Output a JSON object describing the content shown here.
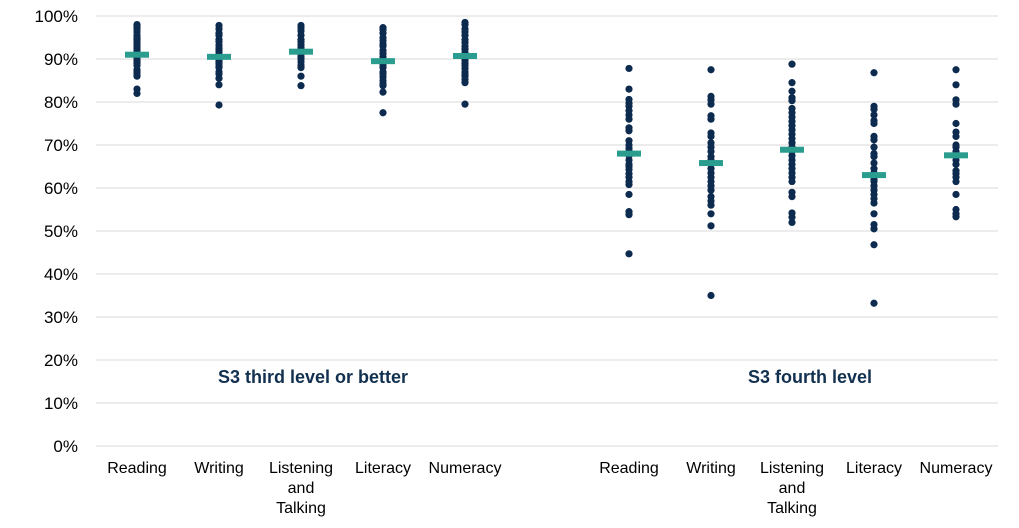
{
  "chart_data": {
    "type": "scatter",
    "subtype": "dot-strip with mean markers",
    "title": "",
    "xlabel": "",
    "ylabel": "",
    "ylim": [
      0,
      100
    ],
    "y_ticks": [
      "0%",
      "10%",
      "20%",
      "30%",
      "40%",
      "50%",
      "60%",
      "70%",
      "80%",
      "90%",
      "100%"
    ],
    "grid": true,
    "legend": "none",
    "colors": {
      "points": "#0d2b4f",
      "mean": "#2a9d8f",
      "grid": "#d9d9d9",
      "group_label": "#12304f"
    },
    "groups": [
      {
        "label": "S3 third level or better",
        "categories": [
          {
            "label": [
              "Reading"
            ],
            "mean": 91.0,
            "values": [
              98.0,
              97.5,
              97.0,
              96.3,
              95.5,
              95.0,
              94.6,
              94.0,
              93.5,
              93.0,
              92.5,
              92.0,
              91.3,
              90.5,
              90.0,
              89.5,
              89.0,
              88.5,
              87.5,
              87.0,
              86.5,
              86.0,
              83.0,
              82.0
            ]
          },
          {
            "label": [
              "Writing"
            ],
            "mean": 90.5,
            "values": [
              97.8,
              97.0,
              96.0,
              95.5,
              94.5,
              94.0,
              93.2,
              92.5,
              92.0,
              91.5,
              90.5,
              90.0,
              89.5,
              89.0,
              88.5,
              88.0,
              87.0,
              86.5,
              85.5,
              84.0,
              79.3
            ]
          },
          {
            "label": [
              "Listening",
              "and",
              "Talking"
            ],
            "mean": 91.7,
            "values": [
              97.8,
              97.2,
              96.5,
              95.5,
              94.5,
              94.0,
              93.3,
              92.6,
              92.0,
              91.2,
              90.5,
              90.0,
              89.3,
              88.5,
              88.0,
              86.0,
              83.8
            ]
          },
          {
            "label": [
              "Literacy"
            ],
            "mean": 89.5,
            "values": [
              97.3,
              96.8,
              96.0,
              95.0,
              94.3,
              93.5,
              93.0,
              92.0,
              91.3,
              90.5,
              89.8,
              89.0,
              88.5,
              88.0,
              87.0,
              86.5,
              85.8,
              85.0,
              84.3,
              83.8,
              82.3,
              77.5
            ]
          },
          {
            "label": [
              "Numeracy"
            ],
            "mean": 90.7,
            "values": [
              98.5,
              98.0,
              97.0,
              96.3,
              95.5,
              94.5,
              93.8,
              93.0,
              92.3,
              91.5,
              91.0,
              90.3,
              89.7,
              89.0,
              88.5,
              87.8,
              87.0,
              86.5,
              86.0,
              85.2,
              84.5,
              79.5
            ]
          }
        ]
      },
      {
        "label": "S3 fourth level",
        "categories": [
          {
            "label": [
              "Reading"
            ],
            "mean": 68.0,
            "values": [
              87.8,
              83.0,
              80.6,
              79.7,
              79.0,
              78.0,
              77.0,
              76.0,
              74.0,
              73.3,
              71.0,
              70.0,
              69.2,
              68.5,
              67.5,
              66.5,
              65.5,
              65.0,
              64.3,
              63.3,
              62.5,
              61.5,
              60.8,
              58.5,
              54.5,
              53.8,
              44.7
            ]
          },
          {
            "label": [
              "Writing"
            ],
            "mean": 65.8,
            "values": [
              87.5,
              81.3,
              80.5,
              79.5,
              76.8,
              76.0,
              72.8,
              72.0,
              70.5,
              69.5,
              68.5,
              67.3,
              66.5,
              65.5,
              64.5,
              63.5,
              62.5,
              61.5,
              60.5,
              59.5,
              58.0,
              57.0,
              56.0,
              54.0,
              51.2,
              35.0
            ]
          },
          {
            "label": [
              "Listening",
              "and",
              "Talking"
            ],
            "mean": 68.9,
            "values": [
              88.8,
              84.5,
              82.5,
              81.0,
              80.3,
              78.5,
              77.5,
              76.5,
              75.5,
              74.5,
              73.5,
              72.5,
              71.5,
              70.5,
              69.5,
              68.5,
              67.5,
              66.5,
              65.5,
              64.5,
              63.5,
              62.5,
              61.5,
              59.0,
              58.0,
              54.2,
              53.2,
              52.0
            ]
          },
          {
            "label": [
              "Literacy"
            ],
            "mean": 63.0,
            "values": [
              86.8,
              79.0,
              78.3,
              77.0,
              75.7,
              75.0,
              72.0,
              71.2,
              69.5,
              68.0,
              67.3,
              65.8,
              64.5,
              63.5,
              62.0,
              61.5,
              60.5,
              59.5,
              58.5,
              57.5,
              56.5,
              54.0,
              51.5,
              50.5,
              46.8,
              33.2
            ]
          },
          {
            "label": [
              "Numeracy"
            ],
            "mean": 67.6,
            "values": [
              87.5,
              84.0,
              80.5,
              79.5,
              75.0,
              73.0,
              72.0,
              70.0,
              69.5,
              68.5,
              67.5,
              66.5,
              65.5,
              64.0,
              63.3,
              62.5,
              61.5,
              58.5,
              55.0,
              54.0,
              53.3
            ]
          }
        ]
      }
    ]
  }
}
